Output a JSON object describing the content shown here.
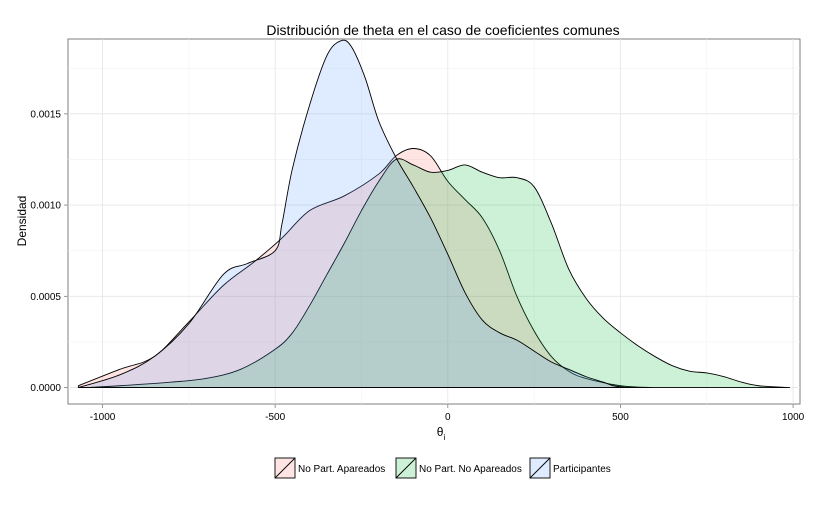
{
  "chart_data": {
    "type": "area",
    "title": "Distribución de theta en el caso de coeficientes comunes",
    "xlabel": "θ",
    "xlabel_subscript": "i",
    "ylabel": "Densidad",
    "xlim": [
      -1100,
      1020
    ],
    "ylim": [
      -9e-05,
      0.00191
    ],
    "x_ticks": [
      -1000,
      -500,
      0,
      500,
      1000
    ],
    "x_tick_labels": [
      "-1000",
      "-500",
      "0",
      "500",
      "1000"
    ],
    "y_ticks": [
      0,
      0.0005,
      0.001,
      0.0015
    ],
    "y_tick_labels": [
      "0.0000",
      "0.0005",
      "0.0010",
      "0.0015"
    ],
    "grid": true,
    "legend_position": "bottom",
    "series": [
      {
        "name": "No Part. Apareados",
        "color": "#F8766D",
        "points": [
          [
            -1070,
            1e-05
          ],
          [
            -950,
            0.0001
          ],
          [
            -850,
            0.00017
          ],
          [
            -750,
            0.00036
          ],
          [
            -650,
            0.00056
          ],
          [
            -560,
            0.00069
          ],
          [
            -480,
            0.00082
          ],
          [
            -400,
            0.00097
          ],
          [
            -300,
            0.00105
          ],
          [
            -200,
            0.00117
          ],
          [
            -150,
            0.00127
          ],
          [
            -100,
            0.00131
          ],
          [
            -50,
            0.00127
          ],
          [
            0,
            0.00113
          ],
          [
            50,
            0.00103
          ],
          [
            100,
            0.00093
          ],
          [
            150,
            0.00075
          ],
          [
            200,
            0.0005
          ],
          [
            250,
            0.00031
          ],
          [
            300,
            0.00017
          ],
          [
            350,
            9e-05
          ],
          [
            400,
            5e-05
          ],
          [
            500,
            1e-05
          ],
          [
            590,
            0.0
          ]
        ]
      },
      {
        "name": "No Part. No Apareados",
        "color": "#00BA38",
        "points": [
          [
            -1050,
            0.0
          ],
          [
            -950,
            1e-05
          ],
          [
            -800,
            3e-05
          ],
          [
            -700,
            5e-05
          ],
          [
            -600,
            0.0001
          ],
          [
            -500,
            0.00021
          ],
          [
            -450,
            0.0003
          ],
          [
            -400,
            0.00045
          ],
          [
            -350,
            0.00062
          ],
          [
            -300,
            0.00079
          ],
          [
            -250,
            0.00097
          ],
          [
            -200,
            0.00113
          ],
          [
            -150,
            0.00125
          ],
          [
            -100,
            0.00122
          ],
          [
            -50,
            0.00118
          ],
          [
            0,
            0.00119
          ],
          [
            50,
            0.00122
          ],
          [
            100,
            0.00118
          ],
          [
            150,
            0.00115
          ],
          [
            200,
            0.00115
          ],
          [
            250,
            0.0011
          ],
          [
            300,
            0.0009
          ],
          [
            350,
            0.00065
          ],
          [
            400,
            0.00049
          ],
          [
            450,
            0.00038
          ],
          [
            500,
            0.0003
          ],
          [
            550,
            0.00023
          ],
          [
            600,
            0.00017
          ],
          [
            650,
            0.00012
          ],
          [
            700,
            9e-05
          ],
          [
            750,
            8e-05
          ],
          [
            800,
            6e-05
          ],
          [
            850,
            3e-05
          ],
          [
            900,
            1e-05
          ],
          [
            990,
            0.0
          ]
        ]
      },
      {
        "name": "Participantes",
        "color": "#619CFF",
        "points": [
          [
            -1070,
            0.0
          ],
          [
            -950,
            7e-05
          ],
          [
            -850,
            0.00017
          ],
          [
            -750,
            0.00035
          ],
          [
            -650,
            0.00062
          ],
          [
            -580,
            0.00068
          ],
          [
            -500,
            0.00075
          ],
          [
            -480,
            0.0009
          ],
          [
            -450,
            0.0012
          ],
          [
            -400,
            0.00155
          ],
          [
            -350,
            0.00182
          ],
          [
            -310,
            0.0019
          ],
          [
            -280,
            0.00187
          ],
          [
            -240,
            0.0017
          ],
          [
            -200,
            0.00146
          ],
          [
            -150,
            0.00126
          ],
          [
            -100,
            0.0011
          ],
          [
            -50,
            0.00093
          ],
          [
            0,
            0.00073
          ],
          [
            50,
            0.00052
          ],
          [
            100,
            0.00037
          ],
          [
            150,
            0.0003
          ],
          [
            200,
            0.00026
          ],
          [
            250,
            0.0002
          ],
          [
            300,
            0.00014
          ],
          [
            350,
            0.0001
          ],
          [
            400,
            6e-05
          ],
          [
            450,
            3e-05
          ],
          [
            480,
            1e-05
          ],
          [
            520,
            0.0
          ]
        ]
      }
    ]
  }
}
